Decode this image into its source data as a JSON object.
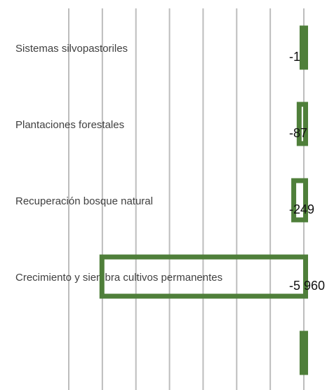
{
  "chart_data": {
    "type": "barh",
    "categories": [
      "Sistemas silvopastoriles",
      "Plantaciones forestales",
      "Recuperación bosque natural",
      "Crecimiento y siembra cultivos permanentes",
      null
    ],
    "values": [
      -1,
      -87,
      -249,
      -5960,
      -1
    ],
    "value_labels": [
      "-1",
      "-87",
      "-249",
      "-5 960",
      null
    ],
    "color": "#4f7f3a",
    "xlim": [
      -7000,
      0
    ],
    "xticks": [
      -7000,
      -6000,
      -5000,
      -4000,
      -3000,
      -2000,
      -1000,
      0
    ],
    "grid": true
  }
}
